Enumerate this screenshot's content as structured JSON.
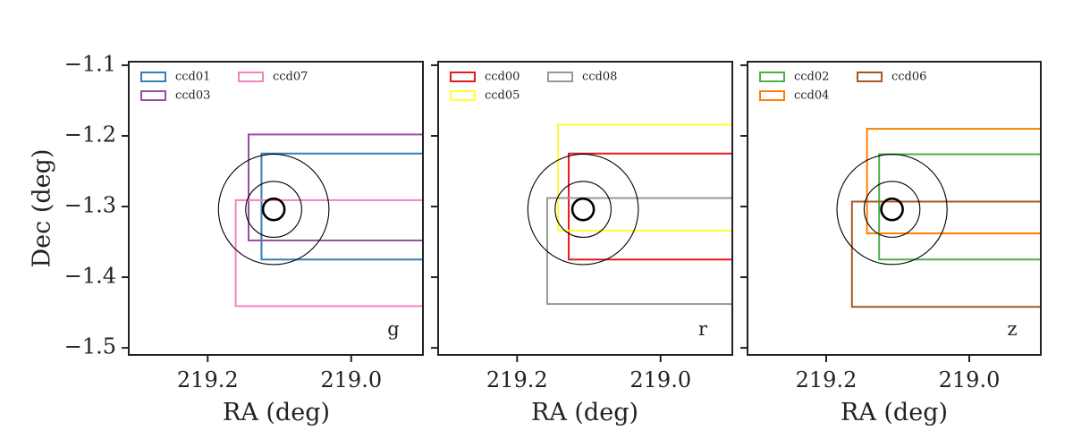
{
  "figure": {
    "ylabel": "Dec (deg)"
  },
  "chart_data": [
    {
      "type": "footprint",
      "band": "g",
      "xlabel": "RA (deg)",
      "ylabel": "Dec (deg)",
      "xlim": [
        219.31,
        218.9
      ],
      "ylim": [
        -1.51,
        -1.095
      ],
      "xticks": [
        219.2,
        219.0
      ],
      "xtick_labels": [
        "219.2",
        "219.0"
      ],
      "yticks": [
        -1.1,
        -1.2,
        -1.3,
        -1.4,
        -1.5
      ],
      "ytick_labels": [
        "−1.1",
        "−1.2",
        "−1.3",
        "−1.4",
        "−1.5"
      ],
      "target": {
        "ra": 219.108,
        "dec": -1.304,
        "radii_deg": [
          0.015,
          0.039,
          0.077
        ]
      },
      "legend": {
        "placement": "upper-left",
        "columns": 2,
        "entries": [
          "ccd01",
          "ccd03",
          "ccd07"
        ]
      },
      "series": [
        {
          "name": "ccd01",
          "color": "#377eb8",
          "ra_min": 218.9,
          "ra_max": 219.125,
          "dec_min": -1.375,
          "dec_max": -1.225
        },
        {
          "name": "ccd03",
          "color": "#984ea3",
          "ra_min": 218.9,
          "ra_max": 219.143,
          "dec_min": -1.348,
          "dec_max": -1.198
        },
        {
          "name": "ccd07",
          "color": "#f781bf",
          "ra_min": 218.9,
          "ra_max": 219.161,
          "dec_min": -1.441,
          "dec_max": -1.291
        }
      ]
    },
    {
      "type": "footprint",
      "band": "r",
      "xlabel": "RA (deg)",
      "xlim": [
        219.31,
        218.9
      ],
      "ylim": [
        -1.51,
        -1.095
      ],
      "xticks": [
        219.2,
        219.0
      ],
      "xtick_labels": [
        "219.2",
        "219.0"
      ],
      "target": {
        "ra": 219.108,
        "dec": -1.304,
        "radii_deg": [
          0.015,
          0.039,
          0.077
        ]
      },
      "legend": {
        "placement": "upper-left",
        "columns": 2,
        "entries": [
          "ccd00",
          "ccd05",
          "ccd08"
        ]
      },
      "series": [
        {
          "name": "ccd00",
          "color": "#e41a1c",
          "ra_min": 218.9,
          "ra_max": 219.128,
          "dec_min": -1.375,
          "dec_max": -1.225
        },
        {
          "name": "ccd05",
          "color": "#ffff33",
          "ra_min": 218.9,
          "ra_max": 219.143,
          "dec_min": -1.334,
          "dec_max": -1.184
        },
        {
          "name": "ccd08",
          "color": "#999999",
          "ra_min": 218.9,
          "ra_max": 219.158,
          "dec_min": -1.438,
          "dec_max": -1.288
        }
      ]
    },
    {
      "type": "footprint",
      "band": "z",
      "xlabel": "RA (deg)",
      "xlim": [
        219.31,
        218.9
      ],
      "ylim": [
        -1.51,
        -1.095
      ],
      "xticks": [
        219.2,
        219.0
      ],
      "xtick_labels": [
        "219.2",
        "219.0"
      ],
      "target": {
        "ra": 219.108,
        "dec": -1.304,
        "radii_deg": [
          0.015,
          0.039,
          0.077
        ]
      },
      "legend": {
        "placement": "upper-left",
        "columns": 2,
        "entries": [
          "ccd02",
          "ccd04",
          "ccd06"
        ]
      },
      "series": [
        {
          "name": "ccd02",
          "color": "#4daf4a",
          "ra_min": 218.9,
          "ra_max": 219.126,
          "dec_min": -1.375,
          "dec_max": -1.226
        },
        {
          "name": "ccd04",
          "color": "#ff7f00",
          "ra_min": 218.9,
          "ra_max": 219.143,
          "dec_min": -1.338,
          "dec_max": -1.19
        },
        {
          "name": "ccd06",
          "color": "#a65628",
          "ra_min": 218.9,
          "ra_max": 219.164,
          "dec_min": -1.442,
          "dec_max": -1.293
        }
      ]
    }
  ]
}
